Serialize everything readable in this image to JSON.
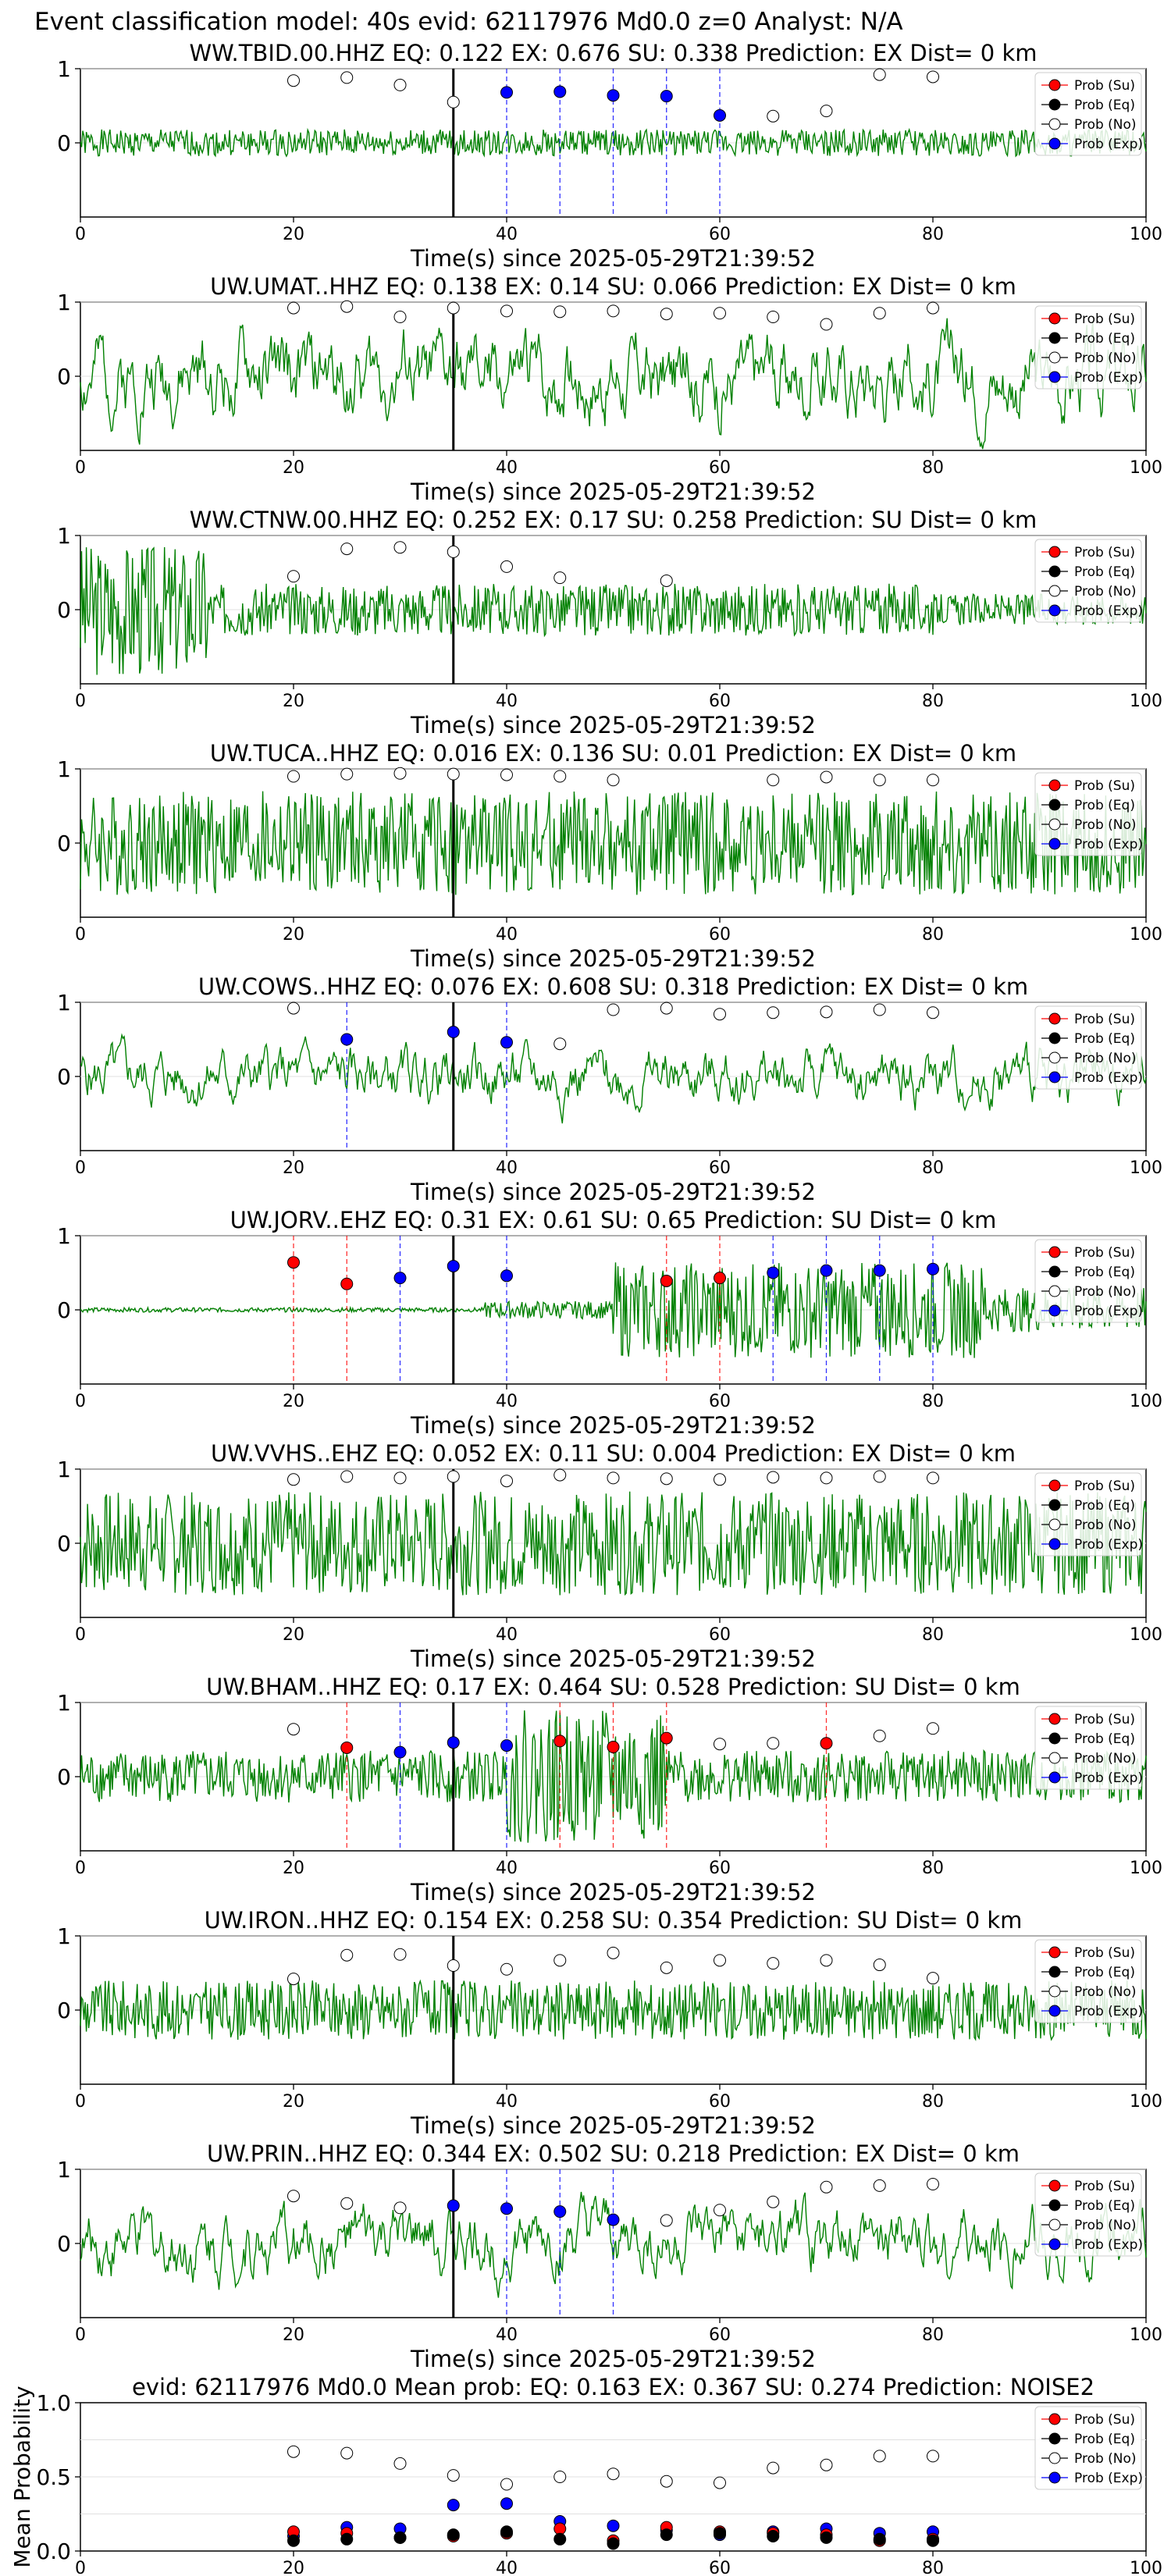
{
  "suptitle": "Event classification model: 40s evid: 62117976 Md0.0 z=0 Analyst: N/A",
  "xlabel": "Time(s) since 2025-05-29T21:39:52",
  "legend": [
    "Prob (Su)",
    "Prob (Eq)",
    "Prob (No)",
    "Prob (Exp)"
  ],
  "colors": {
    "su": "#ff0000",
    "eq": "#000000",
    "no": "#ffffff",
    "exp": "#0000ff",
    "trace": "#008000",
    "pick": "#000000"
  },
  "chart_data": [
    {
      "type": "scatter",
      "panel": "station",
      "title": "WW.TBID.00.HHZ   EQ: 0.122  EX: 0.676  SU: 0.338   Prediction: EX    Dist= 0 km",
      "xlim": [
        0,
        100
      ],
      "ylim": [
        -1,
        1
      ],
      "xticks": [
        0,
        20,
        40,
        60,
        80,
        100
      ],
      "yticks": [
        0,
        1
      ],
      "pick_time": 35,
      "trace": {
        "amp": 0.18,
        "kind": "noise",
        "seed": 1
      },
      "points": [
        {
          "t": 20,
          "p": 0.84,
          "cls": "no"
        },
        {
          "t": 25,
          "p": 0.88,
          "cls": "no"
        },
        {
          "t": 30,
          "p": 0.78,
          "cls": "no"
        },
        {
          "t": 35,
          "p": 0.55,
          "cls": "no"
        },
        {
          "t": 40,
          "p": 0.68,
          "cls": "exp"
        },
        {
          "t": 45,
          "p": 0.69,
          "cls": "exp"
        },
        {
          "t": 50,
          "p": 0.64,
          "cls": "exp"
        },
        {
          "t": 55,
          "p": 0.63,
          "cls": "exp"
        },
        {
          "t": 60,
          "p": 0.37,
          "cls": "exp"
        },
        {
          "t": 65,
          "p": 0.36,
          "cls": "no"
        },
        {
          "t": 70,
          "p": 0.43,
          "cls": "no"
        },
        {
          "t": 75,
          "p": 0.92,
          "cls": "no"
        },
        {
          "t": 80,
          "p": 0.89,
          "cls": "no"
        }
      ]
    },
    {
      "type": "scatter",
      "panel": "station",
      "title": "UW.UMAT..HHZ   EQ: 0.138  EX: 0.14  SU: 0.066   Prediction: EX    Dist= 0 km",
      "xlim": [
        0,
        100
      ],
      "ylim": [
        -1,
        1
      ],
      "xticks": [
        0,
        20,
        40,
        60,
        80,
        100
      ],
      "yticks": [
        0,
        1
      ],
      "pick_time": 35,
      "trace": {
        "amp": 0.75,
        "kind": "wave",
        "seed": 2
      },
      "points": [
        {
          "t": 20,
          "p": 0.92,
          "cls": "no"
        },
        {
          "t": 25,
          "p": 0.94,
          "cls": "no"
        },
        {
          "t": 30,
          "p": 0.8,
          "cls": "no"
        },
        {
          "t": 35,
          "p": 0.92,
          "cls": "no"
        },
        {
          "t": 40,
          "p": 0.88,
          "cls": "no"
        },
        {
          "t": 45,
          "p": 0.87,
          "cls": "no"
        },
        {
          "t": 50,
          "p": 0.88,
          "cls": "no"
        },
        {
          "t": 55,
          "p": 0.84,
          "cls": "no"
        },
        {
          "t": 60,
          "p": 0.85,
          "cls": "no"
        },
        {
          "t": 65,
          "p": 0.8,
          "cls": "no"
        },
        {
          "t": 70,
          "p": 0.7,
          "cls": "no"
        },
        {
          "t": 75,
          "p": 0.85,
          "cls": "no"
        },
        {
          "t": 80,
          "p": 0.92,
          "cls": "no"
        }
      ]
    },
    {
      "type": "scatter",
      "panel": "station",
      "title": "WW.CTNW.00.HHZ   EQ: 0.252  EX: 0.17  SU: 0.258   Prediction: SU    Dist= 0 km",
      "xlim": [
        0,
        100
      ],
      "ylim": [
        -1,
        1
      ],
      "xticks": [
        0,
        20,
        40,
        60,
        80,
        100
      ],
      "yticks": [
        0,
        1
      ],
      "pick_time": 35,
      "trace": {
        "amp": 0.35,
        "kind": "decay",
        "seed": 3
      },
      "points": [
        {
          "t": 20,
          "p": 0.45,
          "cls": "no"
        },
        {
          "t": 25,
          "p": 0.82,
          "cls": "no"
        },
        {
          "t": 30,
          "p": 0.84,
          "cls": "no"
        },
        {
          "t": 35,
          "p": 0.78,
          "cls": "no"
        },
        {
          "t": 40,
          "p": 0.58,
          "cls": "no"
        },
        {
          "t": 45,
          "p": 0.43,
          "cls": "no"
        },
        {
          "t": 55,
          "p": 0.39,
          "cls": "no"
        }
      ]
    },
    {
      "type": "scatter",
      "panel": "station",
      "title": "UW.TUCA..HHZ   EQ: 0.016  EX: 0.136  SU: 0.01   Prediction: EX    Dist= 0 km",
      "xlim": [
        0,
        100
      ],
      "ylim": [
        -1,
        1
      ],
      "xticks": [
        0,
        20,
        40,
        60,
        80,
        100
      ],
      "yticks": [
        0,
        1
      ],
      "pick_time": 35,
      "trace": {
        "amp": 0.7,
        "kind": "noise",
        "seed": 4
      },
      "points": [
        {
          "t": 20,
          "p": 0.9,
          "cls": "no"
        },
        {
          "t": 25,
          "p": 0.93,
          "cls": "no"
        },
        {
          "t": 30,
          "p": 0.94,
          "cls": "no"
        },
        {
          "t": 35,
          "p": 0.93,
          "cls": "no"
        },
        {
          "t": 40,
          "p": 0.92,
          "cls": "no"
        },
        {
          "t": 45,
          "p": 0.9,
          "cls": "no"
        },
        {
          "t": 50,
          "p": 0.85,
          "cls": "no"
        },
        {
          "t": 65,
          "p": 0.85,
          "cls": "no"
        },
        {
          "t": 70,
          "p": 0.89,
          "cls": "no"
        },
        {
          "t": 75,
          "p": 0.85,
          "cls": "no"
        },
        {
          "t": 80,
          "p": 0.85,
          "cls": "no"
        }
      ]
    },
    {
      "type": "scatter",
      "panel": "station",
      "title": "UW.COWS..HHZ   EQ: 0.076  EX: 0.608  SU: 0.318   Prediction: EX    Dist= 0 km",
      "xlim": [
        0,
        100
      ],
      "ylim": [
        -1,
        1
      ],
      "xticks": [
        0,
        20,
        40,
        60,
        80,
        100
      ],
      "yticks": [
        0,
        1
      ],
      "pick_time": 35,
      "trace": {
        "amp": 0.5,
        "kind": "wave",
        "seed": 5
      },
      "points": [
        {
          "t": 20,
          "p": 0.92,
          "cls": "no"
        },
        {
          "t": 25,
          "p": 0.5,
          "cls": "exp"
        },
        {
          "t": 35,
          "p": 0.6,
          "cls": "exp"
        },
        {
          "t": 40,
          "p": 0.46,
          "cls": "exp"
        },
        {
          "t": 45,
          "p": 0.44,
          "cls": "no"
        },
        {
          "t": 50,
          "p": 0.9,
          "cls": "no"
        },
        {
          "t": 55,
          "p": 0.92,
          "cls": "no"
        },
        {
          "t": 60,
          "p": 0.84,
          "cls": "no"
        },
        {
          "t": 65,
          "p": 0.86,
          "cls": "no"
        },
        {
          "t": 70,
          "p": 0.87,
          "cls": "no"
        },
        {
          "t": 75,
          "p": 0.9,
          "cls": "no"
        },
        {
          "t": 80,
          "p": 0.86,
          "cls": "no"
        }
      ]
    },
    {
      "type": "scatter",
      "panel": "station",
      "title": "UW.JORV..EHZ   EQ: 0.31  EX: 0.61  SU: 0.65   Prediction: SU    Dist= 0 km",
      "xlim": [
        0,
        100
      ],
      "ylim": [
        -1,
        1
      ],
      "xticks": [
        0,
        20,
        40,
        60,
        80,
        100
      ],
      "yticks": [
        0,
        1
      ],
      "pick_time": 35,
      "trace": {
        "amp": 0.9,
        "kind": "burst",
        "seed": 6
      },
      "points": [
        {
          "t": 20,
          "p": 0.64,
          "cls": "su"
        },
        {
          "t": 25,
          "p": 0.35,
          "cls": "su"
        },
        {
          "t": 30,
          "p": 0.43,
          "cls": "exp"
        },
        {
          "t": 35,
          "p": 0.59,
          "cls": "exp"
        },
        {
          "t": 40,
          "p": 0.46,
          "cls": "exp"
        },
        {
          "t": 55,
          "p": 0.39,
          "cls": "su"
        },
        {
          "t": 60,
          "p": 0.43,
          "cls": "su"
        },
        {
          "t": 65,
          "p": 0.5,
          "cls": "exp"
        },
        {
          "t": 70,
          "p": 0.53,
          "cls": "exp"
        },
        {
          "t": 75,
          "p": 0.53,
          "cls": "exp"
        },
        {
          "t": 80,
          "p": 0.55,
          "cls": "exp"
        }
      ]
    },
    {
      "type": "scatter",
      "panel": "station",
      "title": "UW.VVHS..EHZ   EQ: 0.052  EX: 0.11  SU: 0.004   Prediction: EX    Dist= 0 km",
      "xlim": [
        0,
        100
      ],
      "ylim": [
        -1,
        1
      ],
      "xticks": [
        0,
        20,
        40,
        60,
        80,
        100
      ],
      "yticks": [
        0,
        1
      ],
      "pick_time": 35,
      "trace": {
        "amp": 0.7,
        "kind": "noise",
        "seed": 7
      },
      "points": [
        {
          "t": 20,
          "p": 0.86,
          "cls": "no"
        },
        {
          "t": 25,
          "p": 0.9,
          "cls": "no"
        },
        {
          "t": 30,
          "p": 0.88,
          "cls": "no"
        },
        {
          "t": 35,
          "p": 0.9,
          "cls": "no"
        },
        {
          "t": 40,
          "p": 0.84,
          "cls": "no"
        },
        {
          "t": 45,
          "p": 0.92,
          "cls": "no"
        },
        {
          "t": 50,
          "p": 0.88,
          "cls": "no"
        },
        {
          "t": 55,
          "p": 0.87,
          "cls": "no"
        },
        {
          "t": 60,
          "p": 0.86,
          "cls": "no"
        },
        {
          "t": 65,
          "p": 0.89,
          "cls": "no"
        },
        {
          "t": 70,
          "p": 0.88,
          "cls": "no"
        },
        {
          "t": 75,
          "p": 0.9,
          "cls": "no"
        },
        {
          "t": 80,
          "p": 0.88,
          "cls": "no"
        }
      ]
    },
    {
      "type": "scatter",
      "panel": "station",
      "title": "UW.BHAM..HHZ   EQ: 0.17  EX: 0.464  SU: 0.528   Prediction: SU    Dist= 0 km",
      "xlim": [
        0,
        100
      ],
      "ylim": [
        -1,
        1
      ],
      "xticks": [
        0,
        20,
        40,
        60,
        80,
        100
      ],
      "yticks": [
        0,
        1
      ],
      "pick_time": 35,
      "trace": {
        "amp": 0.45,
        "kind": "burst2",
        "seed": 8
      },
      "points": [
        {
          "t": 20,
          "p": 0.64,
          "cls": "no"
        },
        {
          "t": 25,
          "p": 0.39,
          "cls": "su"
        },
        {
          "t": 30,
          "p": 0.33,
          "cls": "exp"
        },
        {
          "t": 35,
          "p": 0.46,
          "cls": "exp"
        },
        {
          "t": 40,
          "p": 0.42,
          "cls": "exp"
        },
        {
          "t": 45,
          "p": 0.48,
          "cls": "su"
        },
        {
          "t": 50,
          "p": 0.4,
          "cls": "su"
        },
        {
          "t": 55,
          "p": 0.52,
          "cls": "su"
        },
        {
          "t": 60,
          "p": 0.44,
          "cls": "no"
        },
        {
          "t": 65,
          "p": 0.45,
          "cls": "no"
        },
        {
          "t": 70,
          "p": 0.45,
          "cls": "su"
        },
        {
          "t": 75,
          "p": 0.55,
          "cls": "no"
        },
        {
          "t": 80,
          "p": 0.65,
          "cls": "no"
        }
      ]
    },
    {
      "type": "scatter",
      "panel": "station",
      "title": "UW.IRON..HHZ   EQ: 0.154  EX: 0.258  SU: 0.354   Prediction: SU    Dist= 0 km",
      "xlim": [
        0,
        100
      ],
      "ylim": [
        -1,
        1
      ],
      "xticks": [
        0,
        20,
        40,
        60,
        80,
        100
      ],
      "yticks": [
        0,
        1
      ],
      "pick_time": 35,
      "trace": {
        "amp": 0.4,
        "kind": "noise",
        "seed": 9
      },
      "points": [
        {
          "t": 20,
          "p": 0.42,
          "cls": "no"
        },
        {
          "t": 25,
          "p": 0.74,
          "cls": "no"
        },
        {
          "t": 30,
          "p": 0.75,
          "cls": "no"
        },
        {
          "t": 35,
          "p": 0.6,
          "cls": "no"
        },
        {
          "t": 40,
          "p": 0.55,
          "cls": "no"
        },
        {
          "t": 45,
          "p": 0.67,
          "cls": "no"
        },
        {
          "t": 50,
          "p": 0.77,
          "cls": "no"
        },
        {
          "t": 55,
          "p": 0.57,
          "cls": "no"
        },
        {
          "t": 60,
          "p": 0.67,
          "cls": "no"
        },
        {
          "t": 65,
          "p": 0.63,
          "cls": "no"
        },
        {
          "t": 70,
          "p": 0.67,
          "cls": "no"
        },
        {
          "t": 75,
          "p": 0.61,
          "cls": "no"
        },
        {
          "t": 80,
          "p": 0.43,
          "cls": "no"
        }
      ]
    },
    {
      "type": "scatter",
      "panel": "station",
      "title": "UW.PRIN..HHZ   EQ: 0.344  EX: 0.502  SU: 0.218   Prediction: EX    Dist= 0 km",
      "xlim": [
        0,
        100
      ],
      "ylim": [
        -1,
        1
      ],
      "xticks": [
        0,
        20,
        40,
        60,
        80,
        100
      ],
      "yticks": [
        0,
        1
      ],
      "pick_time": 35,
      "trace": {
        "amp": 0.6,
        "kind": "wave",
        "seed": 10
      },
      "points": [
        {
          "t": 20,
          "p": 0.64,
          "cls": "no"
        },
        {
          "t": 25,
          "p": 0.54,
          "cls": "no"
        },
        {
          "t": 30,
          "p": 0.48,
          "cls": "no"
        },
        {
          "t": 35,
          "p": 0.51,
          "cls": "exp"
        },
        {
          "t": 40,
          "p": 0.47,
          "cls": "exp"
        },
        {
          "t": 45,
          "p": 0.43,
          "cls": "exp"
        },
        {
          "t": 50,
          "p": 0.32,
          "cls": "exp"
        },
        {
          "t": 55,
          "p": 0.31,
          "cls": "no"
        },
        {
          "t": 60,
          "p": 0.45,
          "cls": "no"
        },
        {
          "t": 65,
          "p": 0.56,
          "cls": "no"
        },
        {
          "t": 70,
          "p": 0.76,
          "cls": "no"
        },
        {
          "t": 75,
          "p": 0.78,
          "cls": "no"
        },
        {
          "t": 80,
          "p": 0.8,
          "cls": "no"
        }
      ]
    },
    {
      "type": "scatter",
      "panel": "summary",
      "title": "evid: 62117976  Md0.0   Mean prob:   EQ: 0.163  EX: 0.367  SU: 0.274   Prediction: NOISE2",
      "ylabel": "Mean Probability",
      "xlim": [
        0,
        100
      ],
      "ylim": [
        0,
        1
      ],
      "xticks": [
        0,
        20,
        40,
        60,
        80,
        100
      ],
      "yticks": [
        0.0,
        0.5,
        1.0
      ],
      "x": [
        20,
        25,
        30,
        35,
        40,
        45,
        50,
        55,
        60,
        65,
        70,
        75,
        80
      ],
      "series": [
        {
          "name": "Prob (No)",
          "cls": "no",
          "values": [
            0.67,
            0.66,
            0.59,
            0.51,
            0.45,
            0.5,
            0.52,
            0.47,
            0.46,
            0.56,
            0.58,
            0.64,
            0.64
          ]
        },
        {
          "name": "Prob (Exp)",
          "cls": "exp",
          "values": [
            0.1,
            0.16,
            0.15,
            0.31,
            0.32,
            0.2,
            0.17,
            0.14,
            0.11,
            0.13,
            0.15,
            0.12,
            0.13
          ]
        },
        {
          "name": "Prob (Su)",
          "cls": "su",
          "values": [
            0.13,
            0.12,
            0.09,
            0.1,
            0.12,
            0.15,
            0.07,
            0.16,
            0.13,
            0.12,
            0.11,
            0.07,
            0.08
          ]
        },
        {
          "name": "Prob (Eq)",
          "cls": "eq",
          "values": [
            0.07,
            0.08,
            0.09,
            0.11,
            0.13,
            0.08,
            0.05,
            0.11,
            0.12,
            0.1,
            0.09,
            0.08,
            0.07
          ]
        }
      ]
    }
  ]
}
